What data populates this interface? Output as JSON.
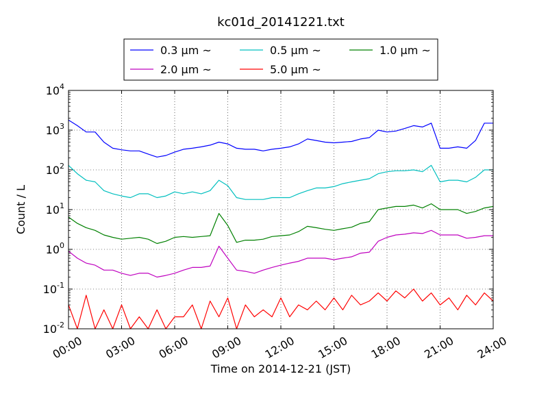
{
  "chart_data": {
    "type": "line",
    "title": "kc01d_20141221.txt",
    "xlabel": "Time on 2014-12-21 (JST)",
    "ylabel": "Count / L",
    "yscale": "log",
    "ylim": [
      0.01,
      10000
    ],
    "xlim": [
      "2014-12-21 00:00",
      "2014-12-22 00:00"
    ],
    "xticks": [
      "00:00",
      "03:00",
      "06:00",
      "09:00",
      "12:00",
      "15:00",
      "18:00",
      "21:00",
      "24:00"
    ],
    "yticks": [
      {
        "base": "10",
        "exp": "-2"
      },
      {
        "base": "10",
        "exp": "-1"
      },
      {
        "base": "10",
        "exp": "0"
      },
      {
        "base": "10",
        "exp": "1"
      },
      {
        "base": "10",
        "exp": "2"
      },
      {
        "base": "10",
        "exp": "3"
      },
      {
        "base": "10",
        "exp": "4"
      }
    ],
    "grid": true,
    "legend_position": "top-center",
    "x_hours": [
      0,
      0.5,
      1,
      1.5,
      2,
      2.5,
      3,
      3.5,
      4,
      4.5,
      5,
      5.5,
      6,
      6.5,
      7,
      7.5,
      8,
      8.5,
      9,
      9.5,
      10,
      10.5,
      11,
      11.5,
      12,
      12.5,
      13,
      13.5,
      14,
      14.5,
      15,
      15.5,
      16,
      16.5,
      17,
      17.5,
      18,
      18.5,
      19,
      19.5,
      20,
      20.5,
      21,
      21.5,
      22,
      22.5,
      23,
      23.5,
      24
    ],
    "series": [
      {
        "name": "0.3 μm ~",
        "color": "#0000ff",
        "values": [
          1800,
          1300,
          900,
          900,
          500,
          350,
          320,
          300,
          300,
          250,
          210,
          230,
          280,
          330,
          350,
          380,
          420,
          500,
          450,
          350,
          330,
          330,
          300,
          330,
          350,
          380,
          450,
          600,
          550,
          500,
          480,
          500,
          520,
          600,
          650,
          1000,
          900,
          950,
          1100,
          1300,
          1200,
          1500,
          350,
          350,
          380,
          350,
          550,
          1500,
          1500
        ]
      },
      {
        "name": "0.5 μm ~",
        "color": "#00bfbf",
        "values": [
          130,
          80,
          55,
          50,
          30,
          25,
          22,
          20,
          25,
          25,
          20,
          22,
          28,
          25,
          28,
          25,
          30,
          55,
          40,
          20,
          18,
          18,
          18,
          20,
          20,
          20,
          25,
          30,
          35,
          35,
          38,
          45,
          50,
          55,
          60,
          80,
          90,
          95,
          95,
          100,
          90,
          130,
          50,
          55,
          55,
          50,
          65,
          100,
          100
        ]
      },
      {
        "name": "1.0 μm ~",
        "color": "#008000",
        "values": [
          6.5,
          4.5,
          3.5,
          3.0,
          2.3,
          2.0,
          1.8,
          1.9,
          2.0,
          1.8,
          1.4,
          1.6,
          2.0,
          2.1,
          2.0,
          2.1,
          2.2,
          8.0,
          4.0,
          1.5,
          1.7,
          1.7,
          1.8,
          2.1,
          2.2,
          2.3,
          2.8,
          3.8,
          3.5,
          3.2,
          3.0,
          3.3,
          3.6,
          4.5,
          5.0,
          10,
          11,
          12,
          12,
          13,
          11,
          14,
          10,
          10,
          10,
          8,
          9,
          11,
          12
        ]
      },
      {
        "name": "2.0 μm ~",
        "color": "#bf00bf",
        "values": [
          0.9,
          0.6,
          0.45,
          0.4,
          0.3,
          0.3,
          0.25,
          0.22,
          0.25,
          0.25,
          0.2,
          0.22,
          0.25,
          0.3,
          0.35,
          0.35,
          0.38,
          1.2,
          0.6,
          0.3,
          0.28,
          0.25,
          0.3,
          0.35,
          0.4,
          0.45,
          0.5,
          0.6,
          0.6,
          0.6,
          0.55,
          0.6,
          0.65,
          0.8,
          0.85,
          1.6,
          2.0,
          2.3,
          2.4,
          2.6,
          2.5,
          3.0,
          2.3,
          2.3,
          2.3,
          1.9,
          2.0,
          2.2,
          2.2
        ]
      },
      {
        "name": "5.0 μm ~",
        "color": "#ff0000",
        "values": [
          0.04,
          0.01,
          0.07,
          0.01,
          0.03,
          0.01,
          0.04,
          0.01,
          0.02,
          0.01,
          0.03,
          0.01,
          0.02,
          0.02,
          0.04,
          0.01,
          0.05,
          0.02,
          0.06,
          0.01,
          0.04,
          0.02,
          0.03,
          0.02,
          0.06,
          0.02,
          0.04,
          0.03,
          0.05,
          0.03,
          0.06,
          0.03,
          0.07,
          0.04,
          0.05,
          0.08,
          0.05,
          0.09,
          0.06,
          0.1,
          0.05,
          0.08,
          0.04,
          0.06,
          0.03,
          0.07,
          0.04,
          0.08,
          0.05
        ]
      }
    ]
  }
}
